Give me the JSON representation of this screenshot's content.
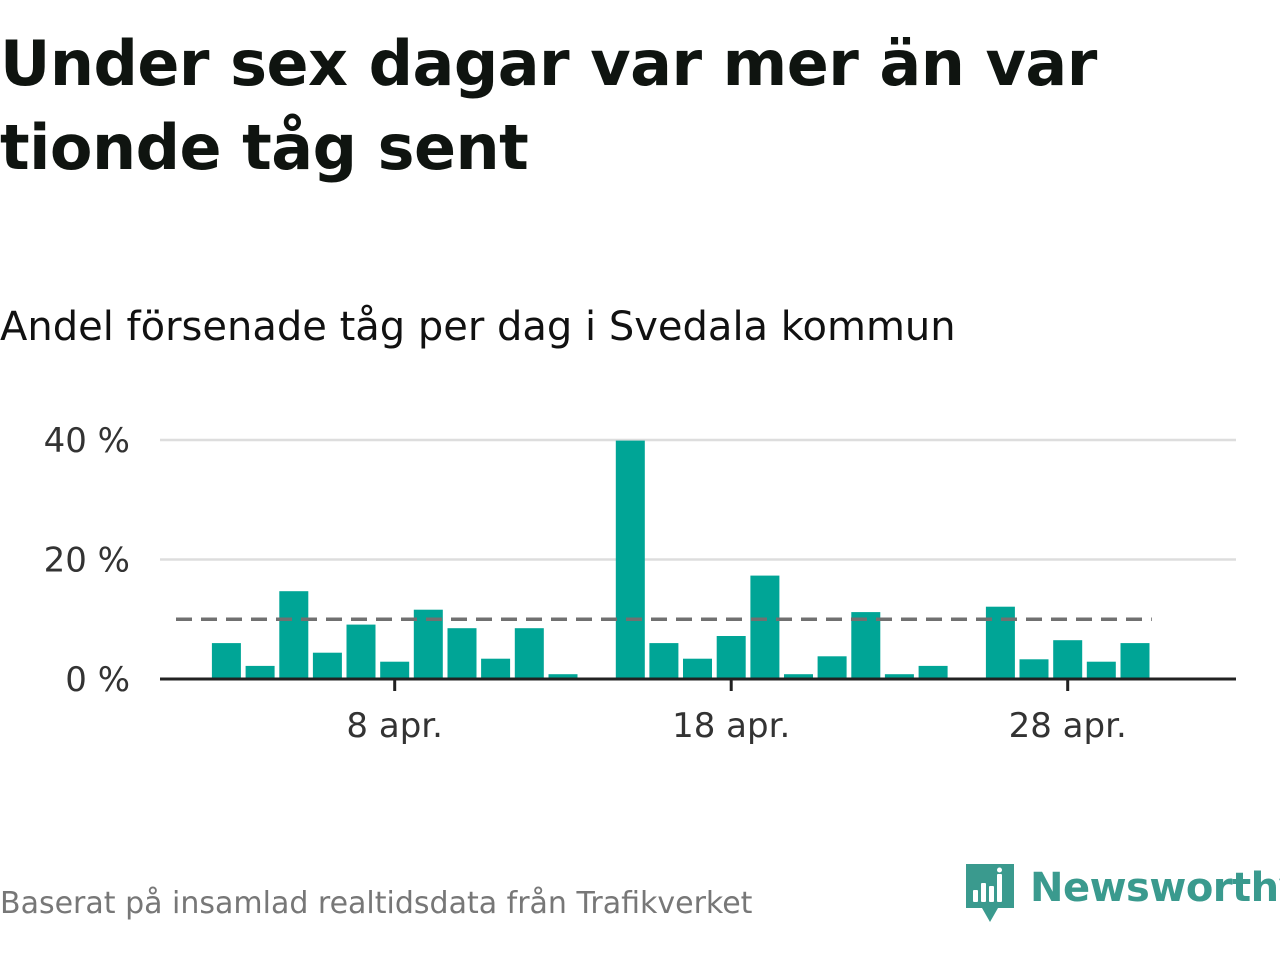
{
  "header": {
    "title": "Under sex dagar var mer än var tionde tåg sent",
    "subtitle": "Andel försenade tåg per dag i Svedala kommun"
  },
  "footer": {
    "source": "Baserat på insamlad realtidsdata från Trafikverket",
    "brand": "Newsworthy",
    "brand_icon": "newsworthy-logo-icon"
  },
  "colors": {
    "bar": "#00a596",
    "reference_line": "#707070",
    "grid": "#dddddd",
    "baseline": "#222222",
    "brand": "#3a9a8e"
  },
  "chart_data": {
    "type": "bar",
    "title": "Under sex dagar var mer än var tionde tåg sent",
    "subtitle": "Andel försenade tåg per dag i Svedala kommun",
    "xlabel": "",
    "ylabel": "",
    "x_unit": "day of April",
    "x_range": [
      0,
      32
    ],
    "x": [
      3,
      4,
      5,
      6,
      7,
      8,
      9,
      10,
      11,
      12,
      13,
      15,
      16,
      17,
      18,
      19,
      20,
      21,
      22,
      23,
      24,
      26,
      27,
      28,
      29,
      30
    ],
    "values": [
      6,
      2.2,
      14.7,
      4.4,
      9.1,
      2.9,
      11.6,
      8.5,
      3.4,
      8.5,
      0.8,
      39.9,
      6,
      3.4,
      7.2,
      17.3,
      0.8,
      3.8,
      11.2,
      0.8,
      2.2,
      12.1,
      3.3,
      6.5,
      2.9,
      6
    ],
    "ylim": [
      0,
      40
    ],
    "yticks": [
      {
        "value": 0,
        "label": "0 %"
      },
      {
        "value": 20,
        "label": "20 %"
      },
      {
        "value": 40,
        "label": "40 %"
      }
    ],
    "xticks": [
      {
        "value": 8,
        "label": "8 apr."
      },
      {
        "value": 18,
        "label": "18 apr."
      },
      {
        "value": 28,
        "label": "28 apr."
      }
    ],
    "reference_line": {
      "value": 10,
      "style": "dashed",
      "x_range": [
        1.5,
        30.5
      ]
    },
    "grid": true,
    "legend": "none"
  }
}
